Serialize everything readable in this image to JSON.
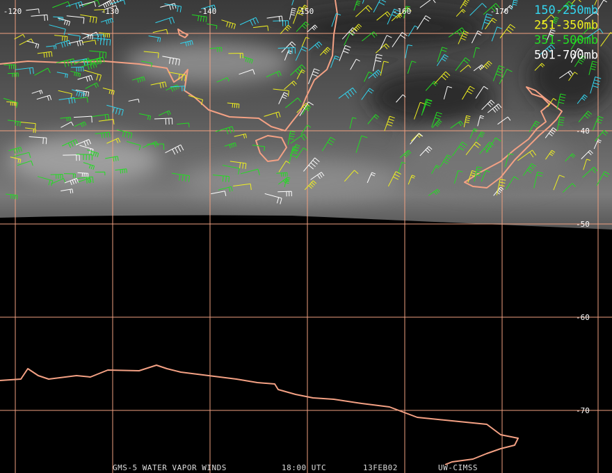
{
  "map": {
    "longitude_labels": [
      -120,
      -130,
      -140,
      -150,
      -160,
      -170
    ],
    "latitude_labels": [
      -40,
      -50,
      -60,
      -70
    ],
    "legend": [
      {
        "name": "150-250mb",
        "color": "#33d6f0"
      },
      {
        "name": "251-350mb",
        "color": "#f0f020"
      },
      {
        "name": "351-500mb",
        "color": "#22dd22"
      },
      {
        "name": "501-700mb",
        "color": "#ffffff"
      }
    ],
    "footer": [
      "GMS-5 WATER VAPOR WINDS",
      "18:00 UTC",
      "13FEB02",
      "UW-CIMSS"
    ]
  }
}
